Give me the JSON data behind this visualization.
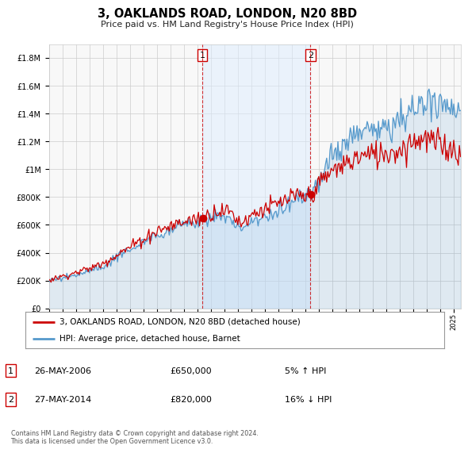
{
  "title": "3, OAKLANDS ROAD, LONDON, N20 8BD",
  "subtitle": "Price paid vs. HM Land Registry's House Price Index (HPI)",
  "hpi_label": "HPI: Average price, detached house, Barnet",
  "property_label": "3, OAKLANDS ROAD, LONDON, N20 8BD (detached house)",
  "property_color": "#cc0000",
  "hpi_color": "#5599cc",
  "hpi_fill_color": "#ddeeff",
  "background_color": "#ffffff",
  "plot_bg_color": "#f8f8f8",
  "grid_color": "#cccccc",
  "purchase1_date": 2006.38,
  "purchase1_price": 650000,
  "purchase2_date": 2014.38,
  "purchase2_price": 820000,
  "purchase1_info": "26-MAY-2006",
  "purchase1_price_str": "£650,000",
  "purchase1_hpi_str": "5% ↑ HPI",
  "purchase2_info": "27-MAY-2014",
  "purchase2_price_str": "£820,000",
  "purchase2_hpi_str": "16% ↓ HPI",
  "footer": "Contains HM Land Registry data © Crown copyright and database right 2024.\nThis data is licensed under the Open Government Licence v3.0.",
  "xmin": 1995.0,
  "xmax": 2025.5
}
